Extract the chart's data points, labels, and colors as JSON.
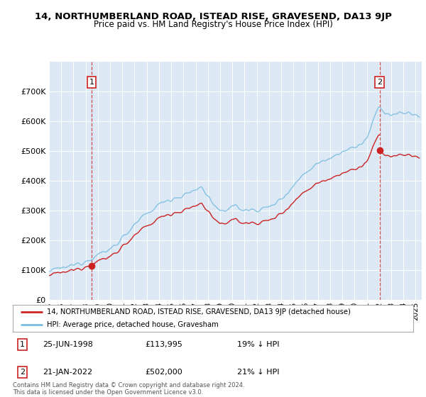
{
  "title": "14, NORTHUMBERLAND ROAD, ISTEAD RISE, GRAVESEND, DA13 9JP",
  "subtitle": "Price paid vs. HM Land Registry's House Price Index (HPI)",
  "ylim": [
    0,
    800000
  ],
  "xlim_start": 1995.0,
  "xlim_end": 2025.5,
  "hpi_color": "#7bbde0",
  "price_color": "#cc2222",
  "bg_color": "#dce9f5",
  "grid_color": "#ffffff",
  "sale1_date": 1998.48,
  "sale1_price": 113995,
  "sale2_date": 2022.055,
  "sale2_price": 502000,
  "legend_line1": "14, NORTHUMBERLAND ROAD, ISTEAD RISE, GRAVESEND, DA13 9JP (detached house)",
  "legend_line2": "HPI: Average price, detached house, Gravesham",
  "copyright": "Contains HM Land Registry data © Crown copyright and database right 2024.\nThis data is licensed under the Open Government Licence v3.0."
}
